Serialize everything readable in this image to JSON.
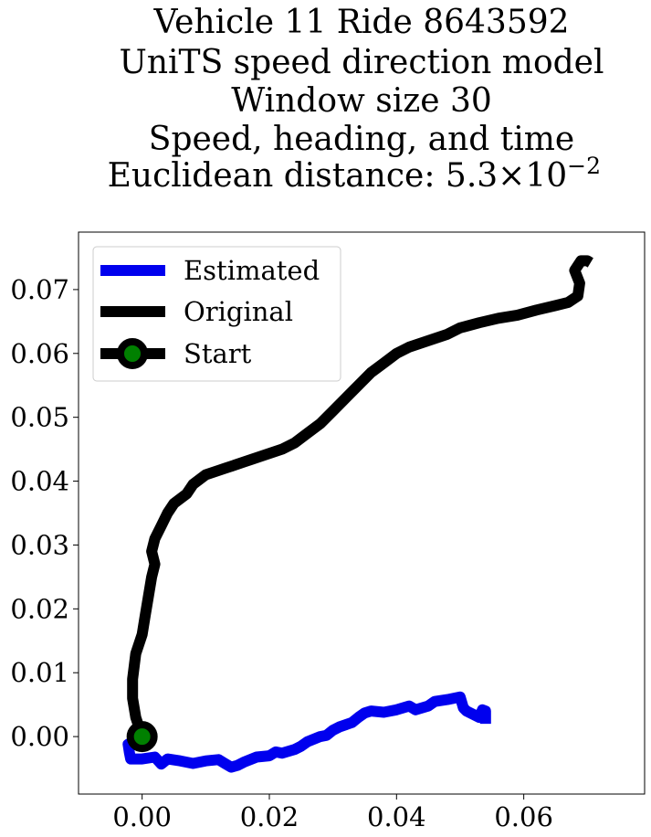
{
  "chart_data": {
    "type": "line",
    "title_lines": [
      "Vehicle 11 Ride 8643592",
      "UniTS speed direction model",
      "Window size 30",
      "Speed, heading, and time",
      "Euclidean distance: 5.3×10",
      "−2"
    ],
    "xlabel": "",
    "ylabel": "",
    "xlim": [
      -0.01,
      0.079
    ],
    "ylim": [
      -0.009,
      0.079
    ],
    "xticks": [
      0.0,
      0.02,
      0.04,
      0.06
    ],
    "xtick_labels": [
      "0.00",
      "0.02",
      "0.04",
      "0.06"
    ],
    "yticks": [
      0.0,
      0.01,
      0.02,
      0.03,
      0.04,
      0.05,
      0.06,
      0.07
    ],
    "ytick_labels": [
      "0.00",
      "0.01",
      "0.02",
      "0.03",
      "0.04",
      "0.05",
      "0.06",
      "0.07"
    ],
    "grid": false,
    "legend_position": "top-left",
    "series": [
      {
        "name": "Estimated",
        "color": "#0000ee",
        "points": [
          [
            0.0,
            0.0
          ],
          [
            -0.0022,
            -0.0012
          ],
          [
            -0.002,
            -0.0025
          ],
          [
            -0.0018,
            -0.0035
          ],
          [
            0.0,
            -0.0035
          ],
          [
            0.002,
            -0.0032
          ],
          [
            0.003,
            -0.0043
          ],
          [
            0.004,
            -0.0035
          ],
          [
            0.006,
            -0.0038
          ],
          [
            0.008,
            -0.0042
          ],
          [
            0.01,
            -0.0038
          ],
          [
            0.012,
            -0.0036
          ],
          [
            0.013,
            -0.0042
          ],
          [
            0.014,
            -0.0048
          ],
          [
            0.015,
            -0.0045
          ],
          [
            0.016,
            -0.004
          ],
          [
            0.018,
            -0.0032
          ],
          [
            0.02,
            -0.003
          ],
          [
            0.021,
            -0.0024
          ],
          [
            0.022,
            -0.0026
          ],
          [
            0.024,
            -0.002
          ],
          [
            0.025,
            -0.0015
          ],
          [
            0.026,
            -0.0008
          ],
          [
            0.028,
            0.0
          ],
          [
            0.029,
            0.0002
          ],
          [
            0.03,
            0.001
          ],
          [
            0.031,
            0.0015
          ],
          [
            0.033,
            0.0022
          ],
          [
            0.034,
            0.003
          ],
          [
            0.035,
            0.0037
          ],
          [
            0.036,
            0.004
          ],
          [
            0.038,
            0.0038
          ],
          [
            0.04,
            0.0042
          ],
          [
            0.042,
            0.0048
          ],
          [
            0.043,
            0.0042
          ],
          [
            0.045,
            0.0048
          ],
          [
            0.046,
            0.0055
          ],
          [
            0.048,
            0.0058
          ],
          [
            0.05,
            0.0062
          ],
          [
            0.0505,
            0.0045
          ],
          [
            0.051,
            0.004
          ],
          [
            0.052,
            0.0035
          ],
          [
            0.053,
            0.003
          ],
          [
            0.0535,
            0.0042
          ],
          [
            0.054,
            0.004
          ],
          [
            0.054,
            0.002
          ]
        ]
      },
      {
        "name": "Original",
        "color": "#000000",
        "points": [
          [
            0.0,
            0.0
          ],
          [
            -0.001,
            0.003
          ],
          [
            -0.0015,
            0.006
          ],
          [
            -0.0015,
            0.009
          ],
          [
            -0.001,
            0.013
          ],
          [
            0.0,
            0.016
          ],
          [
            0.0005,
            0.019
          ],
          [
            0.001,
            0.022
          ],
          [
            0.0015,
            0.025
          ],
          [
            0.002,
            0.027
          ],
          [
            0.0015,
            0.029
          ],
          [
            0.002,
            0.031
          ],
          [
            0.003,
            0.033
          ],
          [
            0.004,
            0.035
          ],
          [
            0.005,
            0.0365
          ],
          [
            0.007,
            0.038
          ],
          [
            0.008,
            0.0395
          ],
          [
            0.01,
            0.041
          ],
          [
            0.013,
            0.042
          ],
          [
            0.016,
            0.043
          ],
          [
            0.019,
            0.044
          ],
          [
            0.022,
            0.045
          ],
          [
            0.024,
            0.046
          ],
          [
            0.026,
            0.0475
          ],
          [
            0.028,
            0.049
          ],
          [
            0.03,
            0.051
          ],
          [
            0.032,
            0.053
          ],
          [
            0.034,
            0.055
          ],
          [
            0.036,
            0.057
          ],
          [
            0.038,
            0.0585
          ],
          [
            0.04,
            0.06
          ],
          [
            0.042,
            0.061
          ],
          [
            0.045,
            0.062
          ],
          [
            0.048,
            0.063
          ],
          [
            0.05,
            0.064
          ],
          [
            0.053,
            0.0648
          ],
          [
            0.056,
            0.0655
          ],
          [
            0.059,
            0.066
          ],
          [
            0.062,
            0.0668
          ],
          [
            0.065,
            0.0675
          ],
          [
            0.067,
            0.068
          ],
          [
            0.0685,
            0.069
          ],
          [
            0.0688,
            0.071
          ],
          [
            0.068,
            0.073
          ],
          [
            0.069,
            0.0745
          ],
          [
            0.07,
            0.0745
          ],
          [
            0.0705,
            0.0742
          ]
        ]
      }
    ],
    "start_marker": {
      "name": "Start",
      "x": 0.0,
      "y": 0.0,
      "fill_color": "#008000",
      "edge_color": "#000000"
    }
  }
}
